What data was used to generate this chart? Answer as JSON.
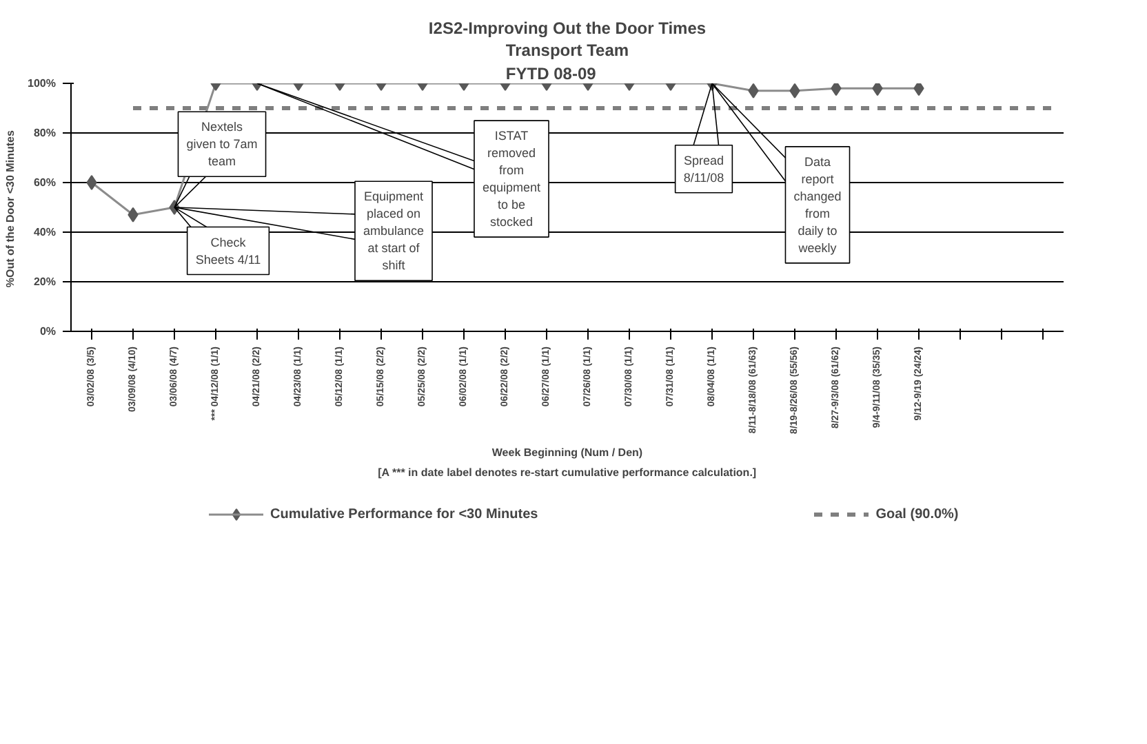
{
  "chart_data": {
    "type": "line",
    "title": "I2S2-Improving Out the Door Times",
    "subtitle": "Transport Team\nFYTD 08-09",
    "xlabel": "Week Beginning (Num / Den)",
    "ylabel": "%Out of  the Door <30 Minutes",
    "categories": [
      "03/02/08 (3/5)",
      "03/09/08 (4/10)",
      "03/06/08 (4/7)",
      "*** 04/12/08 (1/1)",
      "04/21/08 (2/2)",
      "04/23/08 (1/1)",
      "05/12/08 (1/1)",
      "05/15/08 (2/2)",
      "05/25/08 (2/2)",
      "06/02/08 (1/1)",
      "06/22/08 (2/2)",
      "06/27/08 (1/1)",
      "07/26/08 (1/1)",
      "07/30/08 (1/1)",
      "07/31/08 (1/1)",
      "08/04/08 (1/1)",
      "8/11-8/18/08 (61/63)",
      "8/19-8/26/08 (55/56)",
      "8/27-9/3/08 (61/62)",
      "9/4-9/11/08 (35/35)",
      "9/12-9/19 (24/24)",
      null,
      null,
      null
    ],
    "series": [
      {
        "name": "Cumulative Performance for <30 Minutes",
        "color": "#595959",
        "values": [
          60,
          47,
          50,
          100,
          100,
          100,
          100,
          100,
          100,
          100,
          100,
          100,
          100,
          100,
          100,
          100,
          97,
          97,
          98,
          98,
          98,
          null,
          null,
          null
        ]
      }
    ],
    "marker": "diamond",
    "ylim": [
      0,
      100
    ],
    "yticks": [
      {
        "value": 0,
        "label": "0%"
      },
      {
        "value": 20,
        "label": "20%"
      },
      {
        "value": 40,
        "label": "40%"
      },
      {
        "value": 60,
        "label": "60%"
      },
      {
        "value": 80,
        "label": "80%"
      },
      {
        "value": 100,
        "label": "100%"
      }
    ],
    "grid": "y",
    "legend": "bottom",
    "ref_lines": [
      {
        "axis": "y",
        "value": 90,
        "label": "Goal (90.0%)",
        "color": "#7f7f7f",
        "line_style": "dashed"
      }
    ],
    "annotations": [
      {
        "text": "Nextels\ngiven to 7am\nteam",
        "x": "03/06/08 (4/7)",
        "y": 50
      },
      {
        "text": "Check\nSheets 4/11",
        "x": "03/06/08 (4/7)",
        "y": 50
      },
      {
        "text": "Equipment\nplaced on\nambulance\nat start of\nshift",
        "x": "03/06/08 (4/7)",
        "y": 50
      },
      {
        "text": "ISTAT\nremoved\nfrom\nequipment\nto be\nstocked",
        "x": "04/21/08 (2/2)",
        "y": 100
      },
      {
        "text": "Spread\n8/11/08",
        "x": "08/04/08 (1/1)",
        "y": 100
      },
      {
        "text": "Data\nreport\nchanged\nfrom\ndaily to\nweekly",
        "x": "08/04/08 (1/1)",
        "y": 100
      },
      "[A *** in date label denotes re-start cumulative performance calculation.]"
    ]
  }
}
